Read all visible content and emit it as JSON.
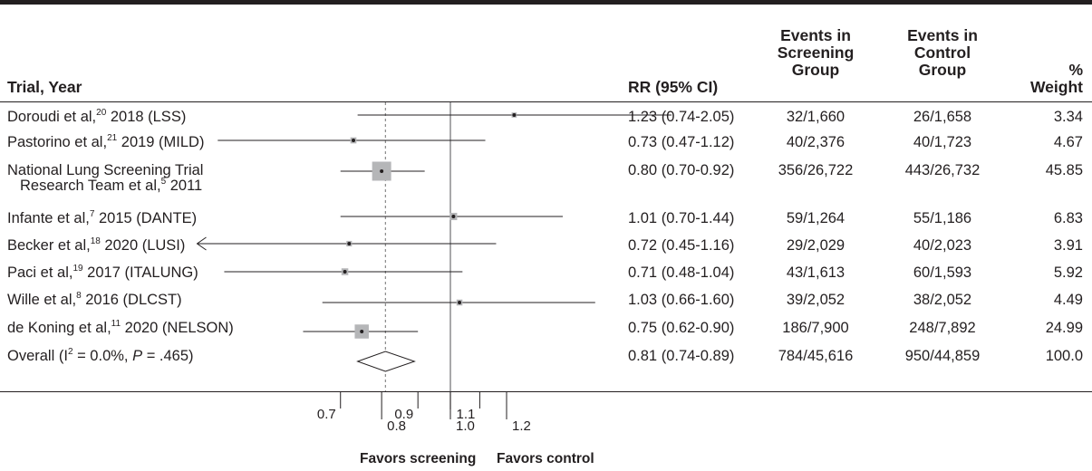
{
  "table": {
    "headers": {
      "trial": "Trial, Year",
      "rr": "RR (95% CI)",
      "screening": [
        "Events in",
        "Screening",
        "Group"
      ],
      "control": [
        "Events in",
        "Control",
        "Group"
      ],
      "weight": [
        "%",
        "Weight"
      ]
    },
    "rows": [
      {
        "author": "Doroudi et al,",
        "ref": "20",
        "suffix": " 2018 (LSS)",
        "rr_text": "1.23 (0.74-2.05)",
        "screening": "32/1,660",
        "control": "26/1,658",
        "weight": "3.34"
      },
      {
        "author": "Pastorino et al,",
        "ref": "21",
        "suffix": " 2019 (MILD)",
        "rr_text": "0.73 (0.47-1.12)",
        "screening": "40/2,376",
        "control": "40/1,723",
        "weight": "4.67"
      },
      {
        "author": "National Lung Screening Trial",
        "line2_author": "Research Team et al,",
        "ref": "5",
        "suffix": " 2011",
        "rr_text": "0.80 (0.70-0.92)",
        "screening": "356/26,722",
        "control": "443/26,732",
        "weight": "45.85"
      },
      {
        "author": "Infante et al,",
        "ref": "7",
        "suffix": " 2015 (DANTE)",
        "rr_text": "1.01 (0.70-1.44)",
        "screening": "59/1,264",
        "control": "55/1,186",
        "weight": "6.83"
      },
      {
        "author": "Becker et al,",
        "ref": "18",
        "suffix": " 2020 (LUSI)",
        "rr_text": "0.72 (0.45-1.16)",
        "screening": "29/2,029",
        "control": "40/2,023",
        "weight": "3.91"
      },
      {
        "author": "Paci et al,",
        "ref": "19",
        "suffix": " 2017 (ITALUNG)",
        "rr_text": "0.71 (0.48-1.04)",
        "screening": "43/1,613",
        "control": "60/1,593",
        "weight": "5.92"
      },
      {
        "author": "Wille et al,",
        "ref": "8",
        "suffix": " 2016 (DLCST)",
        "rr_text": "1.03 (0.66-1.60)",
        "screening": "39/2,052",
        "control": "38/2,052",
        "weight": "4.49"
      },
      {
        "author": "de Koning et al,",
        "ref": "11",
        "suffix": " 2020 (NELSON)",
        "rr_text": "0.75 (0.62-0.90)",
        "screening": "186/7,900",
        "control": "248/7,892",
        "weight": "24.99"
      }
    ],
    "overall": {
      "label_pre": "Overall (I",
      "label_sup": "2",
      "label_mid": " = 0.0%, ",
      "label_p": "P",
      "label_post": " = .465)",
      "rr_text": "0.81 (0.74-0.89)",
      "screening": "784/45,616",
      "control": "950/44,859",
      "weight": "100.0"
    }
  },
  "chart_data": {
    "type": "forest",
    "scale": "log",
    "xlim": [
      0.45,
      2.05
    ],
    "null_line": 1.0,
    "pooled_line": 0.81,
    "ticks": [
      {
        "value": 0.7,
        "label": "0.7"
      },
      {
        "value": 0.8,
        "label": "0.8"
      },
      {
        "value": 0.9,
        "label": "0.9"
      },
      {
        "value": 1.0,
        "label": "1.0"
      },
      {
        "value": 1.1,
        "label": "1.1"
      },
      {
        "value": 1.2,
        "label": "1.2"
      }
    ],
    "studies": [
      {
        "rr": 1.23,
        "lo": 0.74,
        "hi": 2.05,
        "weight": 3.34
      },
      {
        "rr": 0.73,
        "lo": 0.47,
        "hi": 1.12,
        "weight": 4.67
      },
      {
        "rr": 0.8,
        "lo": 0.7,
        "hi": 0.92,
        "weight": 45.85
      },
      {
        "rr": 1.01,
        "lo": 0.7,
        "hi": 1.44,
        "weight": 6.83
      },
      {
        "rr": 0.72,
        "lo": 0.45,
        "hi": 1.16,
        "weight": 3.91,
        "lower_truncated": true
      },
      {
        "rr": 0.71,
        "lo": 0.48,
        "hi": 1.04,
        "weight": 5.92
      },
      {
        "rr": 1.03,
        "lo": 0.66,
        "hi": 1.6,
        "weight": 4.49
      },
      {
        "rr": 0.75,
        "lo": 0.62,
        "hi": 0.9,
        "weight": 24.99
      }
    ],
    "overall": {
      "rr": 0.81,
      "lo": 0.74,
      "hi": 0.89
    },
    "favors_left": "Favors screening",
    "favors_right": "Favors control"
  }
}
